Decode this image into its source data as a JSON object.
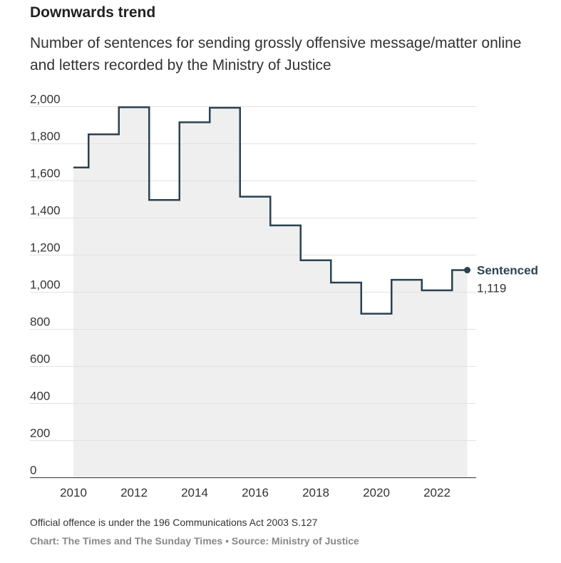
{
  "title": "Downwards trend",
  "subtitle": "Number of sentences for sending grossly offensive message/matter online and letters recorded by the Ministry of Justice",
  "footnote": "Official offence is under the 196 Communications Act 2003 S.127",
  "credit": "Chart: The Times and The Sunday Times • Source: Ministry of Justice",
  "colors": {
    "line": "#2a4252",
    "area": "#efefef",
    "grid": "#e2e2e2"
  },
  "chart_data": {
    "type": "area",
    "step": true,
    "title": "Downwards trend",
    "x": [
      2010,
      2011,
      2012,
      2013,
      2014,
      2015,
      2016,
      2017,
      2018,
      2019,
      2020,
      2021,
      2022,
      2023
    ],
    "series": [
      {
        "name": "Sentenced",
        "values": [
          1672,
          1851,
          1997,
          1497,
          1916,
          1994,
          1515,
          1360,
          1172,
          1052,
          884,
          1067,
          1010,
          1119
        ]
      }
    ],
    "end_label": {
      "name": "Sentenced",
      "value": "1,119"
    },
    "ylim": [
      0,
      2000
    ],
    "yticks": [
      0,
      200,
      400,
      600,
      800,
      1000,
      1200,
      1400,
      1600,
      1800,
      2000
    ],
    "ytick_labels": [
      "0",
      "200",
      "400",
      "600",
      "800",
      "1,000",
      "1,200",
      "1,400",
      "1,600",
      "1,800",
      "2,000"
    ],
    "xticks": [
      2010,
      2012,
      2014,
      2016,
      2018,
      2020,
      2022
    ],
    "grid": true
  }
}
